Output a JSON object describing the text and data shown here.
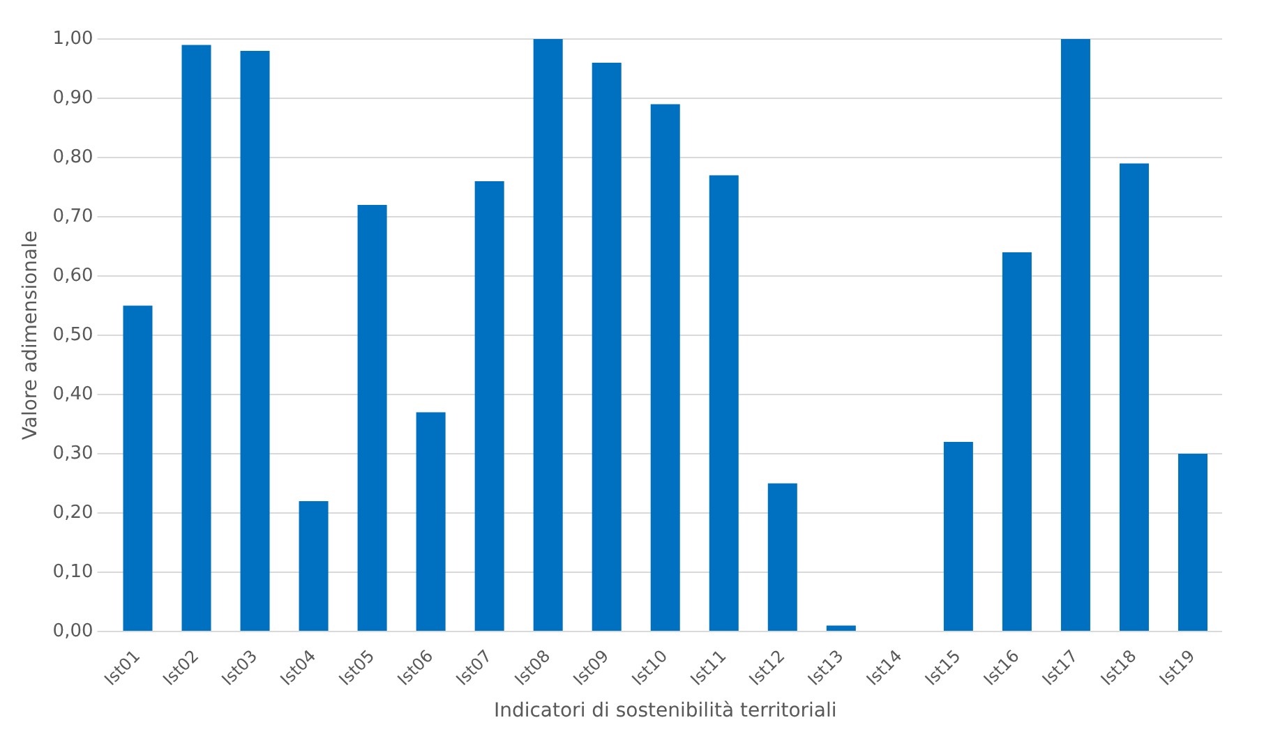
{
  "chart_data": {
    "type": "bar",
    "xlabel": "Indicatori di sostenibilità territoriali",
    "ylabel": "Valore adimensionale",
    "categories": [
      "Ist01",
      "Ist02",
      "Ist03",
      "Ist04",
      "Ist05",
      "Ist06",
      "Ist07",
      "Ist08",
      "Ist09",
      "Ist10",
      "Ist11",
      "Ist12",
      "Ist13",
      "Ist14",
      "Ist15",
      "Ist16",
      "Ist17",
      "Ist18",
      "Ist19"
    ],
    "values": [
      0.55,
      0.99,
      0.98,
      0.22,
      0.72,
      0.37,
      0.76,
      1.0,
      0.96,
      0.89,
      0.77,
      0.25,
      0.01,
      0.0,
      0.32,
      0.64,
      1.0,
      0.79,
      0.3
    ],
    "color": "#0070c0",
    "ylim": [
      0,
      1
    ],
    "yticks": [
      {
        "value": 0,
        "label": "0,00"
      },
      {
        "value": 0.1,
        "label": "0,10"
      },
      {
        "value": 0.2,
        "label": "0,20"
      },
      {
        "value": 0.3,
        "label": "0,30"
      },
      {
        "value": 0.4,
        "label": "0,40"
      },
      {
        "value": 0.5,
        "label": "0,50"
      },
      {
        "value": 0.6,
        "label": "0,60"
      },
      {
        "value": 0.7,
        "label": "0,70"
      },
      {
        "value": 0.8,
        "label": "0,80"
      },
      {
        "value": 0.9,
        "label": "0,90"
      },
      {
        "value": 1.0,
        "label": "1,00"
      }
    ],
    "grid": "y",
    "legend": false
  }
}
